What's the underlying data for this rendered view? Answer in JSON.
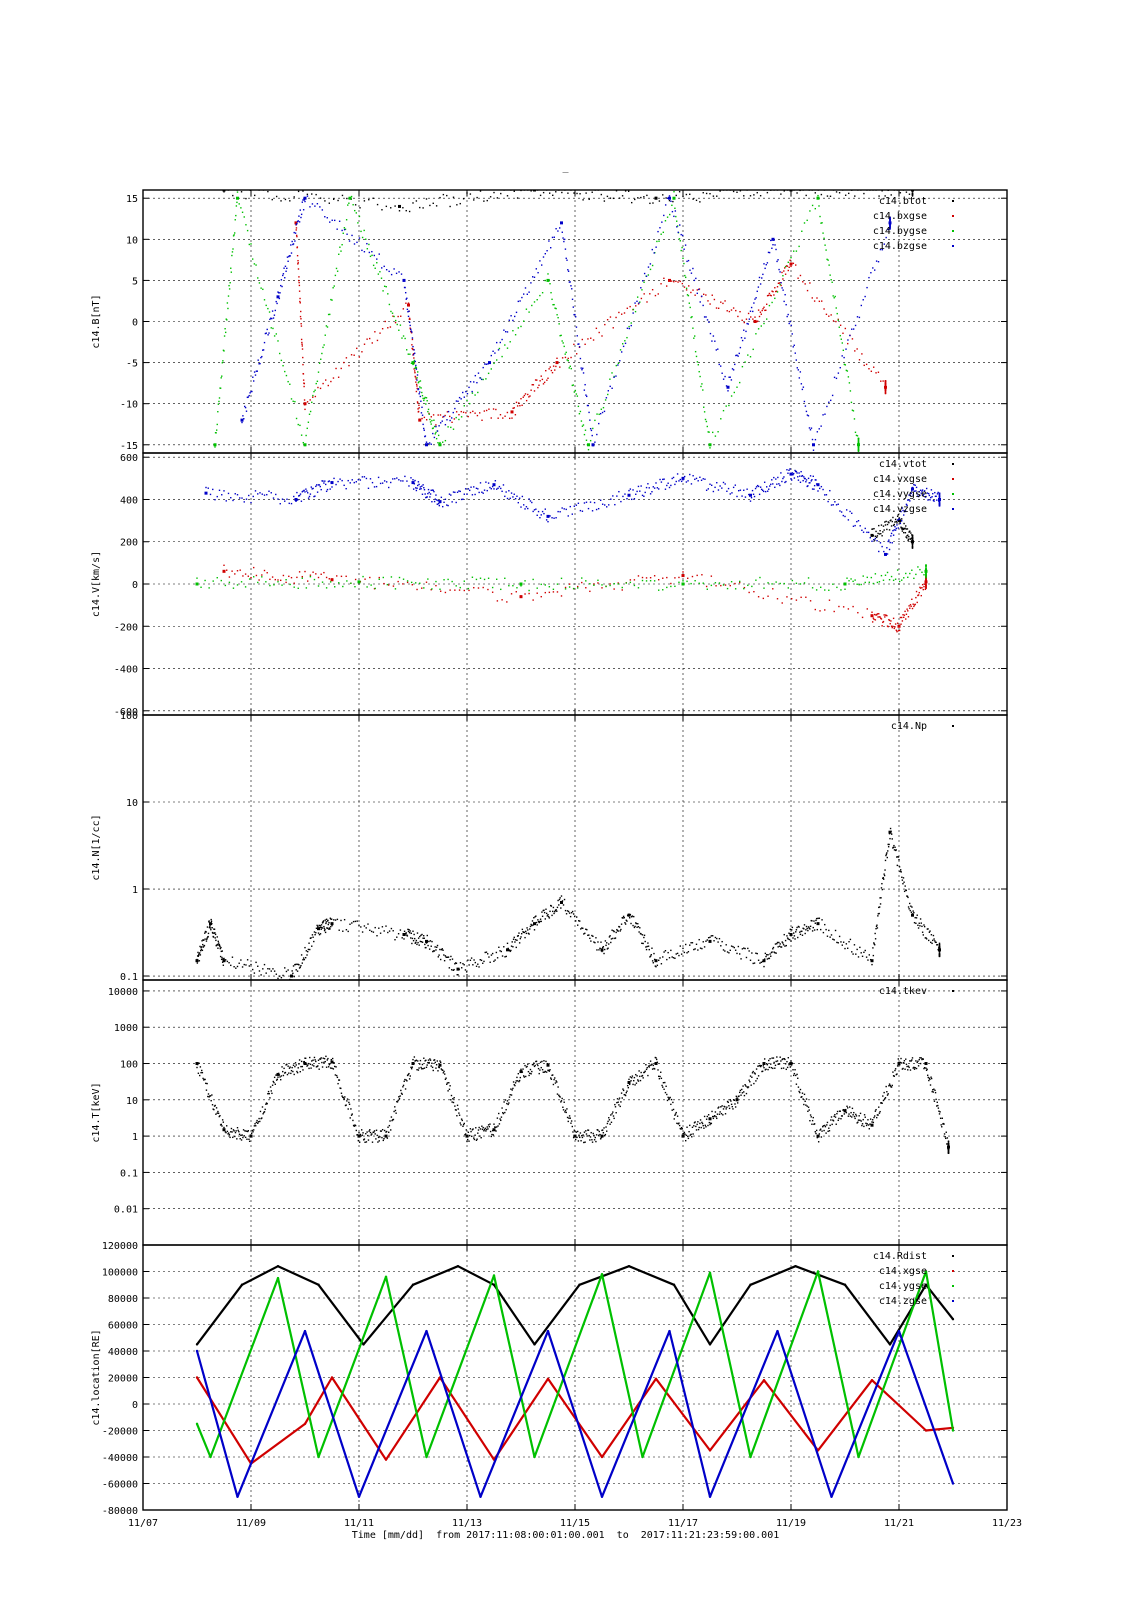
{
  "title": "_",
  "xaxis": {
    "label": "Time [mm/dd]",
    "range_text": "from 2017:11:08:00:01:00.001  to  2017:11:21:23:59:00.001",
    "ticks": [
      "11/07",
      "11/09",
      "11/11",
      "11/13",
      "11/15",
      "11/17",
      "11/19",
      "11/21",
      "11/23"
    ],
    "range_days": [
      0,
      16
    ],
    "day0": "2017-11-07"
  },
  "colors": {
    "black": "#000000",
    "red": "#d00000",
    "green": "#00c000",
    "blue": "#0000c8"
  },
  "chart_data": [
    {
      "type": "scatter",
      "ylabel": "c14.B[nT]",
      "yscale": "linear",
      "ylim": [
        -16,
        16
      ],
      "yticks": [
        -15,
        -10,
        -5,
        0,
        5,
        10,
        15
      ],
      "legend_position": "top-right",
      "series": [
        {
          "name": "c14.btot",
          "color": "black",
          "x": [
            "11/08 12:00",
            "11/11 18:00",
            "11/14 06:00",
            "11/16 12:00",
            "11/19 00:00",
            "11/21 06:00"
          ],
          "values": [
            16,
            14,
            16,
            15,
            16,
            16
          ]
        },
        {
          "name": "c14.bxgse",
          "color": "red",
          "x": [
            "11/09 20:00",
            "11/10 00:00",
            "11/11 22:00",
            "11/12 03:00",
            "11/13 20:00",
            "11/14 16:00",
            "11/16 18:00",
            "11/18 08:00",
            "11/19 00:00",
            "11/20 18:00"
          ],
          "values": [
            12,
            -10,
            2,
            -12,
            -11,
            -5,
            5,
            0,
            7,
            -8
          ]
        },
        {
          "name": "c14.bygse",
          "color": "green",
          "x": [
            "11/08 08:00",
            "11/08 18:00",
            "11/10 00:00",
            "11/10 20:00",
            "11/12 00:00",
            "11/12 12:00",
            "11/14 12:00",
            "11/15 06:00",
            "11/16 20:00",
            "11/17 12:00",
            "11/19 12:00",
            "11/20 06:00"
          ],
          "values": [
            -15,
            15,
            -15,
            15,
            -5,
            -15,
            5,
            -15,
            15,
            -15,
            15,
            -15
          ]
        },
        {
          "name": "c14.bzgse",
          "color": "blue",
          "x": [
            "11/08 20:00",
            "11/09 12:00",
            "11/10 00:00",
            "11/11 20:00",
            "11/12 06:00",
            "11/13 10:00",
            "11/14 18:00",
            "11/15 08:00",
            "11/16 18:00",
            "11/17 20:00",
            "11/18 16:00",
            "11/19 10:00",
            "11/20 20:00"
          ],
          "values": [
            -12,
            3,
            15,
            5,
            -15,
            -5,
            12,
            -15,
            15,
            -8,
            10,
            -15,
            12
          ]
        }
      ]
    },
    {
      "type": "scatter",
      "ylabel": "c14.V[km/s]",
      "yscale": "linear",
      "ylim": [
        -620,
        620
      ],
      "yticks": [
        -600,
        -400,
        -200,
        0,
        200,
        400,
        600
      ],
      "legend_position": "top-right",
      "series": [
        {
          "name": "c14.vtot",
          "color": "black",
          "x": [
            "11/20 12:00",
            "11/21 00:00",
            "11/21 06:00"
          ],
          "values": [
            230,
            300,
            200
          ]
        },
        {
          "name": "c14.vxgse",
          "color": "red",
          "x": [
            "11/08 12:00",
            "11/10 12:00",
            "11/14 00:00",
            "11/17 00:00",
            "11/20 12:00",
            "11/21 00:00",
            "11/21 12:00"
          ],
          "values": [
            60,
            20,
            -60,
            40,
            -150,
            -200,
            10
          ]
        },
        {
          "name": "c14.vygse",
          "color": "green",
          "x": [
            "11/08 00:00",
            "11/11 00:00",
            "11/14 00:00",
            "11/17 00:00",
            "11/20 00:00",
            "11/21 12:00"
          ],
          "values": [
            0,
            10,
            0,
            0,
            0,
            60
          ]
        },
        {
          "name": "c14.vzgse",
          "color": "blue",
          "x": [
            "11/08 04:00",
            "11/09 20:00",
            "11/10 12:00",
            "11/12 00:00",
            "11/12 12:00",
            "11/13 12:00",
            "11/14 12:00",
            "11/16 00:00",
            "11/17 00:00",
            "11/18 06:00",
            "11/19 00:00",
            "11/19 12:00",
            "11/20 18:00",
            "11/21 06:00",
            "11/21 18:00"
          ],
          "values": [
            430,
            400,
            480,
            480,
            390,
            470,
            320,
            420,
            500,
            420,
            520,
            470,
            140,
            450,
            400
          ]
        }
      ]
    },
    {
      "type": "scatter",
      "ylabel": "c14.N[1/cc]",
      "yscale": "log",
      "ylim": [
        0.09,
        100
      ],
      "yticks": [
        0.1,
        1,
        10,
        100
      ],
      "ytick_labels": [
        "0.1",
        "1",
        "10",
        "100"
      ],
      "legend_position": "top-right",
      "series": [
        {
          "name": "c14.Np",
          "color": "black",
          "x": [
            "11/08 00:00",
            "11/08 06:00",
            "11/08 12:00",
            "11/09 18:00",
            "11/10 06:00",
            "11/10 12:00",
            "11/11 20:00",
            "11/12 06:00",
            "11/12 20:00",
            "11/13 18:00",
            "11/14 06:00",
            "11/14 18:00",
            "11/15 12:00",
            "11/16 00:00",
            "11/16 12:00",
            "11/17 12:00",
            "11/18 12:00",
            "11/19 00:00",
            "11/19 12:00",
            "11/20 12:00",
            "11/20 20:00",
            "11/21 06:00",
            "11/21 18:00"
          ],
          "values": [
            0.15,
            0.4,
            0.15,
            0.1,
            0.35,
            0.4,
            0.3,
            0.25,
            0.12,
            0.2,
            0.4,
            0.7,
            0.2,
            0.5,
            0.15,
            0.25,
            0.15,
            0.3,
            0.4,
            0.15,
            4.5,
            0.5,
            0.2
          ]
        }
      ]
    },
    {
      "type": "scatter",
      "ylabel": "c14.T[keV]",
      "yscale": "log",
      "ylim": [
        0.001,
        20000
      ],
      "yticks": [
        0.01,
        0.1,
        1,
        10,
        100,
        1000,
        10000
      ],
      "ytick_labels": [
        "0.01",
        "0.1",
        "1",
        "10",
        "100",
        "1000",
        "10000"
      ],
      "legend_position": "top-right",
      "series": [
        {
          "name": "c14.tkev",
          "color": "black",
          "x": [
            "11/08 00:00",
            "11/08 12:00",
            "11/09 00:00",
            "11/09 12:00",
            "11/10 00:00",
            "11/10 12:00",
            "11/11 00:00",
            "11/11 12:00",
            "11/12 00:00",
            "11/12 12:00",
            "11/13 00:00",
            "11/13 12:00",
            "11/14 00:00",
            "11/14 12:00",
            "11/15 00:00",
            "11/15 12:00",
            "11/16 00:00",
            "11/16 12:00",
            "11/17 00:00",
            "11/17 12:00",
            "11/18 00:00",
            "11/18 12:00",
            "11/19 00:00",
            "11/19 12:00",
            "11/20 00:00",
            "11/20 12:00",
            "11/21 00:00",
            "11/21 12:00",
            "11/21 22:00"
          ],
          "values": [
            100,
            1.5,
            1,
            50,
            100,
            110,
            1,
            1,
            100,
            90,
            1,
            1.5,
            60,
            90,
            1,
            1,
            30,
            100,
            1,
            3,
            10,
            100,
            100,
            1,
            5,
            2,
            100,
            100,
            0.5
          ]
        }
      ]
    },
    {
      "type": "line",
      "ylabel": "c14.location[RE]",
      "yscale": "linear",
      "ylim": [
        -80000,
        120000
      ],
      "yticks": [
        -80000,
        -60000,
        -40000,
        -20000,
        0,
        20000,
        40000,
        60000,
        80000,
        100000,
        120000
      ],
      "legend_position": "top-right",
      "series": [
        {
          "name": "c14.Rdist",
          "color": "black",
          "x": [
            "11/08 00:00",
            "11/08 20:00",
            "11/09 12:00",
            "11/10 06:00",
            "11/11 02:00",
            "11/12 00:00",
            "11/12 20:00",
            "11/13 12:00",
            "11/14 06:00",
            "11/15 02:00",
            "11/16 00:00",
            "11/16 20:00",
            "11/17 12:00",
            "11/18 06:00",
            "11/19 02:00",
            "11/20 00:00",
            "11/20 20:00",
            "11/21 12:00",
            "11/21 23:59"
          ],
          "values": [
            45000,
            90000,
            104000,
            90000,
            45000,
            90000,
            104000,
            90000,
            45000,
            90000,
            104000,
            90000,
            45000,
            90000,
            104000,
            90000,
            45000,
            90000,
            64000
          ]
        },
        {
          "name": "c14.xgse",
          "color": "red",
          "x": [
            "11/08 00:00",
            "11/09 00:00",
            "11/10 00:00",
            "11/10 12:00",
            "11/11 12:00",
            "11/12 12:00",
            "11/13 12:00",
            "11/14 12:00",
            "11/15 12:00",
            "11/16 12:00",
            "11/17 12:00",
            "11/18 12:00",
            "11/19 12:00",
            "11/20 12:00",
            "11/21 12:00",
            "11/21 23:59"
          ],
          "values": [
            20000,
            -45000,
            -15000,
            20000,
            -42000,
            20000,
            -42000,
            19000,
            -40000,
            19000,
            -35000,
            18000,
            -35000,
            18000,
            -20000,
            -18000
          ]
        },
        {
          "name": "c14.ygse",
          "color": "green",
          "x": [
            "11/08 00:00",
            "11/08 06:00",
            "11/09 12:00",
            "11/10 06:00",
            "11/11 12:00",
            "11/12 06:00",
            "11/13 12:00",
            "11/14 06:00",
            "11/15 12:00",
            "11/16 06:00",
            "11/17 12:00",
            "11/18 06:00",
            "11/19 12:00",
            "11/20 06:00",
            "11/21 12:00",
            "11/21 23:59"
          ],
          "values": [
            -15000,
            -40000,
            95000,
            -40000,
            96000,
            -40000,
            97000,
            -40000,
            98000,
            -40000,
            99000,
            -40000,
            100000,
            -40000,
            100000,
            -20000
          ]
        },
        {
          "name": "c14.zgse",
          "color": "blue",
          "x": [
            "11/08 00:00",
            "11/08 18:00",
            "11/10 00:00",
            "11/11 00:00",
            "11/12 06:00",
            "11/13 06:00",
            "11/14 12:00",
            "11/15 12:00",
            "11/16 18:00",
            "11/17 12:00",
            "11/18 18:00",
            "11/19 18:00",
            "11/21 00:00",
            "11/21 23:59"
          ],
          "values": [
            40000,
            -70000,
            55000,
            -70000,
            55000,
            -70000,
            55000,
            -70000,
            55000,
            -70000,
            55000,
            -70000,
            55000,
            -60000
          ]
        }
      ]
    }
  ]
}
